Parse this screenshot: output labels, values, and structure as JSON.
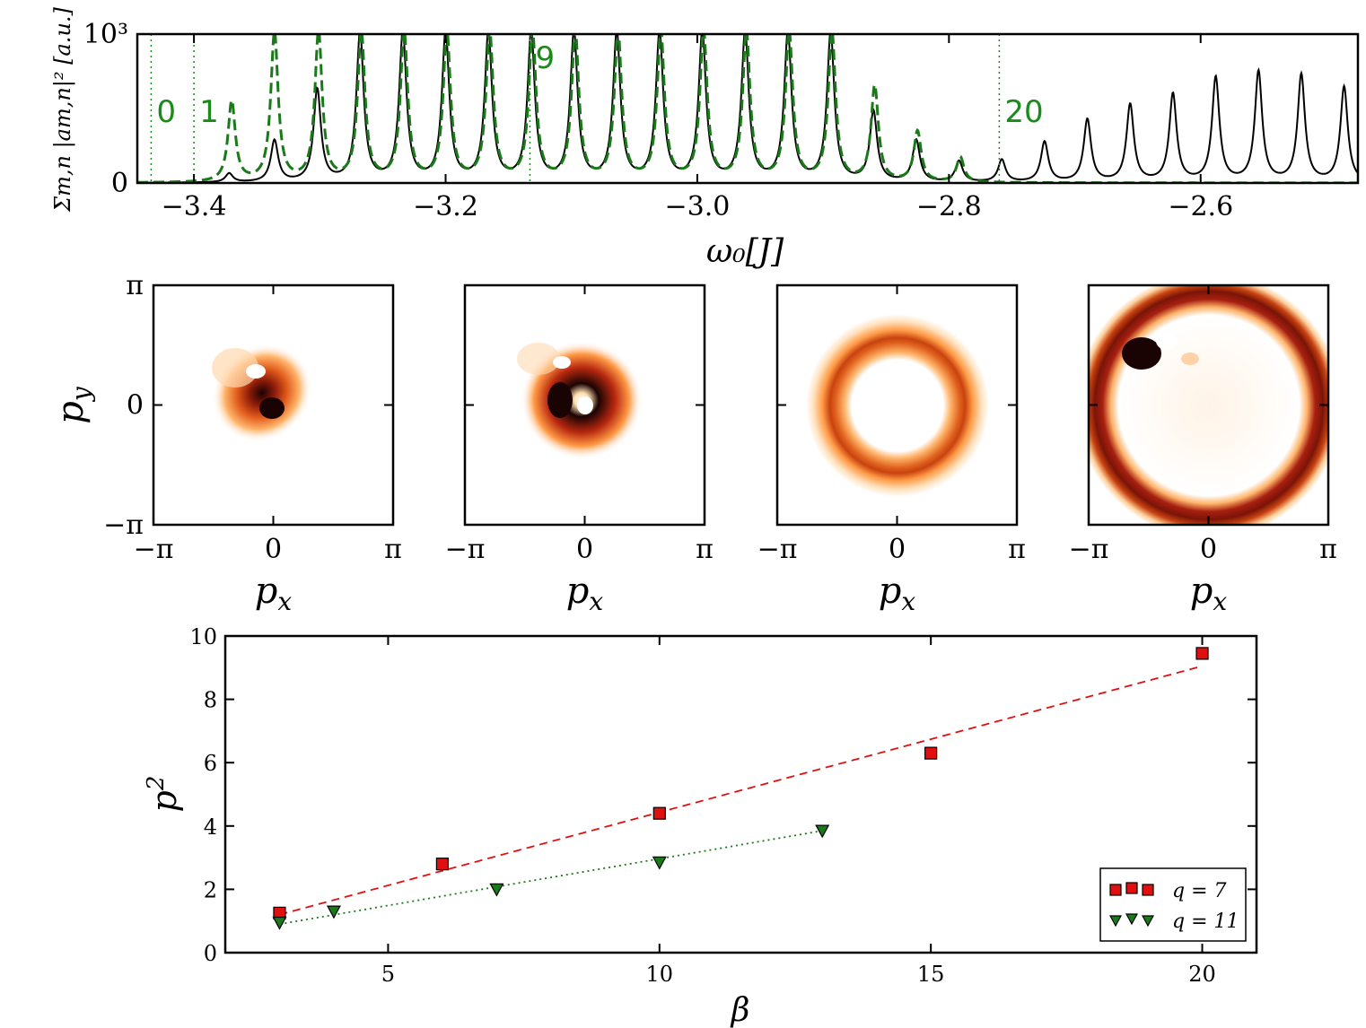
{
  "chart_data": [
    {
      "type": "line",
      "panel": "spectrum",
      "xlabel": "ω0[J]",
      "ylabel": "Σm,n |am,n|² [a.u.]",
      "xlim": [
        -3.445,
        -2.475
      ],
      "ylim": [
        0,
        1000
      ],
      "x_ticks": [
        "−3.4",
        "−3.2",
        "−3.0",
        "−2.8",
        "−2.6"
      ],
      "x_tick_values": [
        -3.4,
        -3.2,
        -3.0,
        -2.8,
        -2.6
      ],
      "y_ticks": [
        "0",
        "10³"
      ],
      "y_tick_values": [
        0,
        1000
      ],
      "annotations": [
        {
          "text": "0",
          "x": -3.434
        },
        {
          "text": "1",
          "x": -3.4
        },
        {
          "text": "9",
          "x": -3.133
        },
        {
          "text": "20",
          "x": -2.76
        }
      ],
      "series": [
        {
          "style": "solid",
          "color": "#000000",
          "peaks_x": [
            -3.403,
            -3.372,
            -3.336,
            -3.302,
            -3.268,
            -3.234,
            -3.2,
            -3.166,
            -3.132,
            -3.098,
            -3.064,
            -3.03,
            -2.996,
            -2.962,
            -2.928,
            -2.894,
            -2.86,
            -2.826,
            -2.792,
            -2.758,
            -2.724,
            -2.69,
            -2.656,
            -2.622,
            -2.588,
            -2.554,
            -2.52,
            -2.486
          ],
          "peaks_y": [
            0,
            60,
            280,
            620,
            1000,
            1000,
            1000,
            1000,
            1000,
            1000,
            1000,
            1000,
            1000,
            1000,
            1000,
            1000,
            470,
            280,
            140,
            150,
            270,
            420,
            520,
            590,
            700,
            740,
            720,
            640
          ]
        },
        {
          "style": "dashed",
          "color": "#1a7a1a",
          "peaks_x": [
            -3.37,
            -3.336,
            -3.301,
            -3.267,
            -3.233,
            -3.199,
            -3.165,
            -3.131,
            -3.097,
            -3.063,
            -3.029,
            -2.995,
            -2.961,
            -2.927,
            -2.893,
            -2.859,
            -2.825,
            -2.791
          ],
          "peaks_y": [
            540,
            1000,
            1000,
            1000,
            1000,
            1000,
            1000,
            1000,
            1000,
            1000,
            1000,
            1000,
            1000,
            1000,
            1000,
            640,
            340,
            170
          ]
        }
      ]
    },
    {
      "type": "heatmap",
      "panel": "momentum-distributions",
      "xlabel": "px",
      "ylabel": "py",
      "x_ticks": [
        "−π",
        "0",
        "π"
      ],
      "y_ticks": [
        "π",
        "0",
        "−π"
      ],
      "colormap": [
        "#ffffff",
        "#ffd9a8",
        "#ff9b3d",
        "#e0541a",
        "#a8200f",
        "#2a0505"
      ],
      "panels": [
        {
          "kind": "blob",
          "center": [
            0.0,
            0.0
          ],
          "spread": 0.55
        },
        {
          "kind": "blob-hole",
          "center": [
            -0.1,
            0.0
          ],
          "spread": 0.65
        },
        {
          "kind": "ring",
          "radius": 1.65,
          "width": 0.55
        },
        {
          "kind": "ring-large",
          "radius": 2.55,
          "width": 0.55
        }
      ]
    },
    {
      "type": "scatter",
      "panel": "p2-vs-beta",
      "xlabel": "β",
      "ylabel": "p²",
      "xlim": [
        2,
        21
      ],
      "ylim": [
        0,
        10
      ],
      "x_ticks": [
        "5",
        "10",
        "15",
        "20"
      ],
      "x_tick_values": [
        5,
        10,
        15,
        20
      ],
      "y_ticks": [
        "0",
        "2",
        "4",
        "6",
        "8",
        "10"
      ],
      "y_tick_values": [
        0,
        2,
        4,
        6,
        8,
        10
      ],
      "legend_position": "lower-right",
      "series": [
        {
          "name": "q = 7",
          "marker": "square",
          "color": "#e01010",
          "x": [
            3,
            6,
            10,
            15,
            20
          ],
          "y": [
            1.25,
            2.8,
            4.4,
            6.3,
            9.45
          ],
          "fit": {
            "style": "dashed",
            "x": [
              3,
              20
            ],
            "y": [
              1.2,
              9.05
            ]
          }
        },
        {
          "name": "q = 11",
          "marker": "triangle-down",
          "color": "#1a7a1a",
          "x": [
            3,
            4,
            7,
            10,
            13
          ],
          "y": [
            0.95,
            1.3,
            2.0,
            2.85,
            3.85
          ],
          "fit": {
            "style": "dotted",
            "x": [
              3,
              13
            ],
            "y": [
              0.9,
              3.85
            ]
          }
        }
      ]
    }
  ]
}
